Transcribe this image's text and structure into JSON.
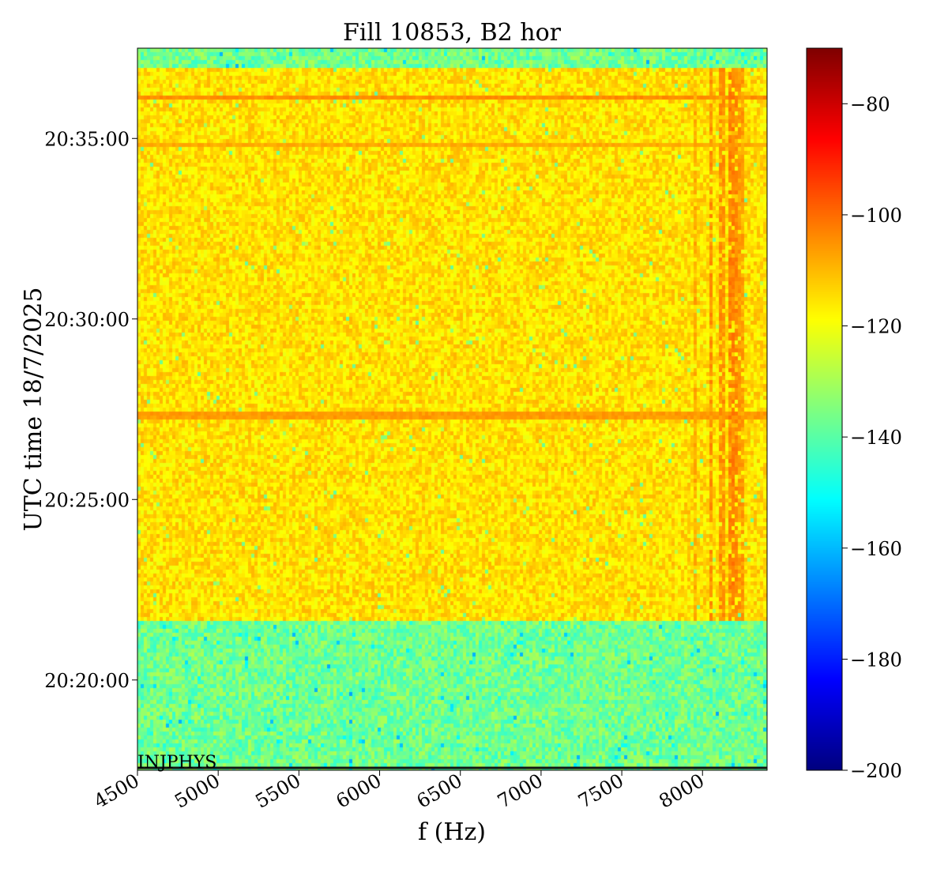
{
  "chart_data": {
    "type": "heatmap",
    "title": "Fill 10853, B2 hor",
    "xlabel": "f (Hz)",
    "ylabel": "UTC time 18/7/2025",
    "xlim": [
      4500,
      8400
    ],
    "x_ticks": [
      4500,
      5000,
      5500,
      6000,
      6500,
      7000,
      7500,
      8000
    ],
    "x_tick_labels": [
      "4500",
      "5000",
      "5500",
      "6000",
      "6500",
      "7000",
      "7500",
      "8000"
    ],
    "ylim": [
      "20:17:30",
      "20:37:30"
    ],
    "y_ticks": [
      "20:20:00",
      "20:25:00",
      "20:30:00",
      "20:35:00"
    ],
    "y_tick_labels": [
      "20:20:00",
      "20:25:00",
      "20:30:00",
      "20:35:00"
    ],
    "colormap": "jet",
    "colorbar": {
      "vmin": -200,
      "vmax": -70,
      "ticks": [
        -200,
        -180,
        -160,
        -140,
        -120,
        -100,
        -80
      ],
      "tick_labels": [
        "−200",
        "−180",
        "−160",
        "−140",
        "−120",
        "−100",
        "−80"
      ]
    },
    "regions": [
      {
        "time_start": "20:17:30",
        "time_end": "20:21:40",
        "level": -137,
        "spread": 8
      },
      {
        "time_start": "20:21:40",
        "time_end": "20:37:00",
        "level": -115,
        "spread": 6
      },
      {
        "time_start": "20:37:00",
        "time_end": "20:37:30",
        "level": -137,
        "spread": 8
      }
    ],
    "horizontal_lines": [
      {
        "time": "20:36:10",
        "level": -104
      },
      {
        "time": "20:34:50",
        "level": -108
      },
      {
        "time": "20:27:20",
        "level": -106
      }
    ],
    "vertical_lines": [
      {
        "f": 7950,
        "level": -108
      },
      {
        "f": 8050,
        "level": -105
      },
      {
        "f": 8120,
        "level": -105
      },
      {
        "f": 8180,
        "level": -103
      },
      {
        "f": 8210,
        "level": -104
      },
      {
        "f": 8240,
        "level": -106
      }
    ],
    "annotation": {
      "text": "INJPHYS",
      "time": "20:17:30"
    }
  }
}
